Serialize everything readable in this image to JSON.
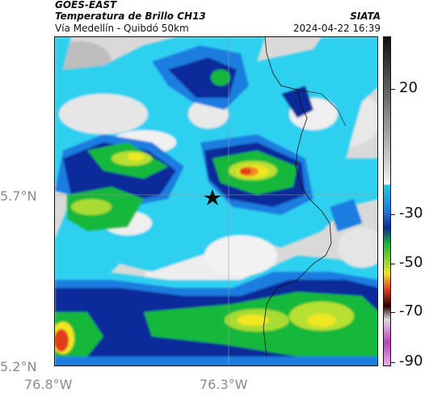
{
  "header": {
    "product": "GOES-EAST",
    "title": "Temperatura de Brillo CH13",
    "subtitle": "Vía Medellín - Quibdó 50km",
    "brand": "SIATA",
    "timestamp": "2024-04-22 16:39"
  },
  "axes": {
    "lat_ticks": [
      "5.7°N",
      "5.2°N"
    ],
    "lon_ticks": [
      "76.8°W",
      "76.3°W"
    ]
  },
  "colorbar": {
    "ticks": [
      "20",
      "-30",
      "-50",
      "-70",
      "-90"
    ],
    "unit_values": [
      20,
      -30,
      -50,
      -70,
      -90
    ],
    "range": [
      30,
      -95
    ]
  },
  "colors": {
    "clear_sky": "#dcdcdc",
    "cold_cyan": "#22c8ea",
    "deep_blue": "#0a2c9a",
    "green": "#16b83a",
    "yellow": "#f0e620",
    "red": "#e03a1c",
    "magenta": "#c040c0"
  }
}
